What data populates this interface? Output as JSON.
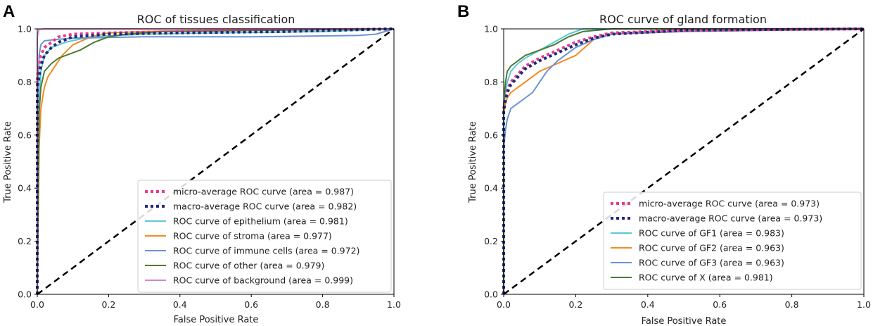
{
  "chart_data": [
    {
      "panel": "A",
      "type": "line",
      "title": "ROC of tissues classification",
      "xlabel": "False Positive Rate",
      "ylabel": "True Positive Rate",
      "xlim": [
        0.0,
        1.0
      ],
      "ylim": [
        0.0,
        1.0
      ],
      "xticks": [
        "0.0",
        "0.2",
        "0.4",
        "0.6",
        "0.8",
        "1.0"
      ],
      "yticks": [
        "0.0",
        "0.2",
        "0.4",
        "0.6",
        "0.8",
        "1.0"
      ],
      "legend_position": "lower-right",
      "chance_line": true,
      "series": [
        {
          "name": "micro-average ROC curve (area = 0.987)",
          "color": "#e8398d",
          "style": "dotted-thick",
          "x": [
            0,
            0,
            0.01,
            0.02,
            0.04,
            0.06,
            0.1,
            0.2,
            0.4,
            0.7,
            1.0
          ],
          "y": [
            0,
            0.82,
            0.9,
            0.93,
            0.95,
            0.97,
            0.98,
            0.985,
            0.99,
            0.995,
            1.0
          ]
        },
        {
          "name": "macro-average ROC curve (area = 0.982)",
          "color": "#1f2a78",
          "style": "dotted-thick",
          "x": [
            0,
            0,
            0.01,
            0.02,
            0.04,
            0.06,
            0.1,
            0.2,
            0.4,
            0.7,
            1.0
          ],
          "y": [
            0,
            0.78,
            0.86,
            0.9,
            0.93,
            0.95,
            0.97,
            0.98,
            0.985,
            0.99,
            1.0
          ]
        },
        {
          "name": "ROC curve of epithelium (area = 0.981)",
          "color": "#5bc8d8",
          "style": "solid",
          "x": [
            0,
            0.005,
            0.01,
            0.02,
            0.04,
            0.08,
            0.15,
            0.3,
            0.5,
            0.8,
            1.0
          ],
          "y": [
            0,
            0.7,
            0.84,
            0.9,
            0.93,
            0.95,
            0.97,
            0.98,
            0.985,
            0.99,
            1.0
          ]
        },
        {
          "name": "ROC curve of stroma (area = 0.977)",
          "color": "#f5891f",
          "style": "solid",
          "x": [
            0,
            0.005,
            0.01,
            0.02,
            0.03,
            0.05,
            0.07,
            0.1,
            0.15,
            0.2,
            0.3,
            0.5,
            1.0
          ],
          "y": [
            0,
            0.55,
            0.7,
            0.78,
            0.82,
            0.86,
            0.9,
            0.94,
            0.97,
            0.985,
            0.99,
            0.995,
            1.0
          ]
        },
        {
          "name": "ROC curve of immune cells (area = 0.972)",
          "color": "#6b93d6",
          "style": "solid",
          "x": [
            0,
            0,
            0.005,
            0.01,
            0.02,
            0.05,
            0.1,
            0.3,
            0.6,
            0.9,
            0.95,
            1.0
          ],
          "y": [
            0,
            0.6,
            0.9,
            0.94,
            0.955,
            0.96,
            0.965,
            0.97,
            0.97,
            0.975,
            0.98,
            1.0
          ]
        },
        {
          "name": "ROC curve of other (area = 0.979)",
          "color": "#4c7a33",
          "style": "solid",
          "x": [
            0,
            0.005,
            0.01,
            0.02,
            0.04,
            0.06,
            0.08,
            0.12,
            0.16,
            0.2,
            0.25,
            0.35,
            1.0
          ],
          "y": [
            0,
            0.68,
            0.78,
            0.84,
            0.87,
            0.89,
            0.9,
            0.92,
            0.95,
            0.97,
            0.98,
            0.99,
            1.0
          ]
        },
        {
          "name": "ROC curve of background (area = 0.999)",
          "color": "#d685cc",
          "style": "solid",
          "x": [
            0,
            0,
            0.005,
            0.02,
            0.1,
            0.5,
            1.0
          ],
          "y": [
            0,
            0.97,
            0.998,
            1.0,
            1.0,
            1.0,
            1.0
          ]
        }
      ]
    },
    {
      "panel": "B",
      "type": "line",
      "title": "ROC curve of gland formation",
      "xlabel": "False Positive Rate",
      "ylabel": "True Positive Rate",
      "xlim": [
        0.0,
        1.0
      ],
      "ylim": [
        0.0,
        1.0
      ],
      "xticks": [
        "0.0",
        "0.2",
        "0.4",
        "0.6",
        "0.8",
        "1.0"
      ],
      "yticks": [
        "0.0",
        "0.2",
        "0.4",
        "0.6",
        "0.8",
        "1.0"
      ],
      "legend_position": "lower-right",
      "chance_line": true,
      "series": [
        {
          "name": "micro-average ROC curve (area = 0.973)",
          "color": "#e8398d",
          "style": "dotted-thick",
          "x": [
            0,
            0,
            0.005,
            0.01,
            0.02,
            0.04,
            0.06,
            0.1,
            0.15,
            0.2,
            0.25,
            0.3,
            0.5,
            1.0
          ],
          "y": [
            0,
            0.7,
            0.74,
            0.77,
            0.8,
            0.83,
            0.86,
            0.89,
            0.92,
            0.95,
            0.97,
            0.985,
            0.995,
            1.0
          ]
        },
        {
          "name": "macro-average ROC curve (area = 0.973)",
          "color": "#1f2a78",
          "style": "dotted-thick",
          "x": [
            0,
            0,
            0.005,
            0.01,
            0.02,
            0.04,
            0.06,
            0.1,
            0.15,
            0.2,
            0.25,
            0.3,
            0.5,
            1.0
          ],
          "y": [
            0,
            0.69,
            0.73,
            0.76,
            0.79,
            0.82,
            0.85,
            0.88,
            0.91,
            0.94,
            0.965,
            0.98,
            0.995,
            1.0
          ]
        },
        {
          "name": "ROC curve of GF1 (area = 0.983)",
          "color": "#5bc8d8",
          "style": "solid",
          "x": [
            0,
            0,
            0.005,
            0.01,
            0.02,
            0.04,
            0.06,
            0.1,
            0.14,
            0.18,
            0.22,
            0.3,
            1.0
          ],
          "y": [
            0,
            0.7,
            0.76,
            0.8,
            0.84,
            0.87,
            0.89,
            0.92,
            0.95,
            0.98,
            1.0,
            1.0,
            1.0
          ]
        },
        {
          "name": "ROC curve of GF2 (area = 0.963)",
          "color": "#f5891f",
          "style": "solid",
          "x": [
            0,
            0,
            0.005,
            0.01,
            0.02,
            0.04,
            0.06,
            0.1,
            0.15,
            0.2,
            0.25,
            0.3,
            0.5,
            1.0
          ],
          "y": [
            0,
            0.68,
            0.72,
            0.74,
            0.76,
            0.78,
            0.8,
            0.84,
            0.87,
            0.9,
            0.96,
            0.98,
            0.99,
            1.0
          ]
        },
        {
          "name": "ROC curve of GF3 (area = 0.963)",
          "color": "#6b93d6",
          "style": "solid",
          "x": [
            0,
            0,
            0.005,
            0.01,
            0.02,
            0.04,
            0.06,
            0.08,
            0.1,
            0.12,
            0.15,
            0.2,
            0.25,
            0.3,
            0.5,
            1.0
          ],
          "y": [
            0,
            0.55,
            0.62,
            0.66,
            0.7,
            0.72,
            0.74,
            0.76,
            0.8,
            0.84,
            0.88,
            0.93,
            0.96,
            0.98,
            0.99,
            1.0
          ]
        },
        {
          "name": "ROC curve of X (area = 0.981)",
          "color": "#4c7a33",
          "style": "solid",
          "x": [
            0,
            0,
            0.005,
            0.01,
            0.02,
            0.04,
            0.06,
            0.1,
            0.14,
            0.18,
            0.22,
            0.3,
            1.0
          ],
          "y": [
            0,
            0.72,
            0.8,
            0.84,
            0.86,
            0.88,
            0.9,
            0.92,
            0.94,
            0.97,
            0.99,
            1.0,
            1.0
          ]
        }
      ]
    }
  ]
}
